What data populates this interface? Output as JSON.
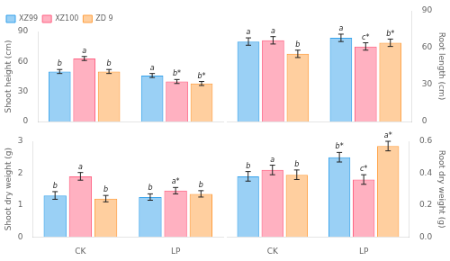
{
  "chart_data": [
    {
      "type": "bar",
      "ylabel": "Shoot height (cm)",
      "categories": [
        "CK",
        "LP"
      ],
      "series": [
        {
          "name": "XZ99",
          "values": [
            50,
            46
          ],
          "errors": [
            2,
            2
          ],
          "annotations": [
            "b",
            "a"
          ]
        },
        {
          "name": "XZ100",
          "values": [
            63,
            40
          ],
          "errors": [
            2,
            2
          ],
          "annotations": [
            "a",
            "b*"
          ]
        },
        {
          "name": "ZD 9",
          "values": [
            50,
            38
          ],
          "errors": [
            2,
            2
          ],
          "annotations": [
            "b",
            "b*"
          ]
        }
      ],
      "ylim": [
        0,
        90
      ],
      "yticks": [
        0,
        30,
        60,
        90
      ],
      "grid": false,
      "legend": "upper left",
      "tick_labels": "y"
    },
    {
      "type": "bar",
      "ylabel": "Root length (cm)",
      "categories": [
        "CK",
        "LP"
      ],
      "series": [
        {
          "name": "XZ99",
          "values": [
            65,
            68
          ],
          "errors": [
            3,
            3
          ],
          "annotations": [
            "a",
            "a"
          ]
        },
        {
          "name": "XZ100",
          "values": [
            66,
            61
          ],
          "errors": [
            3,
            3
          ],
          "annotations": [
            "a",
            "c*"
          ]
        },
        {
          "name": "ZD 9",
          "values": [
            55,
            64
          ],
          "errors": [
            3,
            3
          ],
          "annotations": [
            "b",
            "b*"
          ]
        }
      ],
      "ylim": [
        0,
        90
      ],
      "yticks": [
        0,
        30,
        60,
        90
      ],
      "grid": false,
      "tick_labels": "y"
    },
    {
      "type": "bar",
      "ylabel": "Shoot dry weight (g)",
      "categories": [
        "CK",
        "LP"
      ],
      "series": [
        {
          "name": "XZ99",
          "values": [
            1.3,
            1.25
          ],
          "errors": [
            0.12,
            0.1
          ],
          "annotations": [
            "b",
            "b"
          ]
        },
        {
          "name": "XZ100",
          "values": [
            1.9,
            1.45
          ],
          "errors": [
            0.12,
            0.1
          ],
          "annotations": [
            "a",
            "a*"
          ]
        },
        {
          "name": "ZD 9",
          "values": [
            1.2,
            1.35
          ],
          "errors": [
            0.1,
            0.1
          ],
          "annotations": [
            "b",
            "b"
          ]
        }
      ],
      "ylim": [
        0,
        3
      ],
      "yticks": [
        0,
        1,
        2,
        3
      ],
      "grid": false
    },
    {
      "type": "bar",
      "ylabel": "Root dry weight (g)",
      "categories": [
        "CK",
        "LP"
      ],
      "series": [
        {
          "name": "XZ99",
          "values": [
            0.38,
            0.5
          ],
          "errors": [
            0.03,
            0.03
          ],
          "annotations": [
            "b",
            "b*"
          ]
        },
        {
          "name": "XZ100",
          "values": [
            0.42,
            0.36
          ],
          "errors": [
            0.03,
            0.03
          ],
          "annotations": [
            "a",
            "c*"
          ]
        },
        {
          "name": "ZD 9",
          "values": [
            0.39,
            0.57
          ],
          "errors": [
            0.03,
            0.03
          ],
          "annotations": [
            "b",
            "a*"
          ]
        }
      ],
      "ylim": [
        0.0,
        0.6
      ],
      "yticks": [
        {
          "value": 0,
          "label": "0.0"
        },
        0.2,
        0.4,
        0.6
      ],
      "grid": false
    }
  ]
}
